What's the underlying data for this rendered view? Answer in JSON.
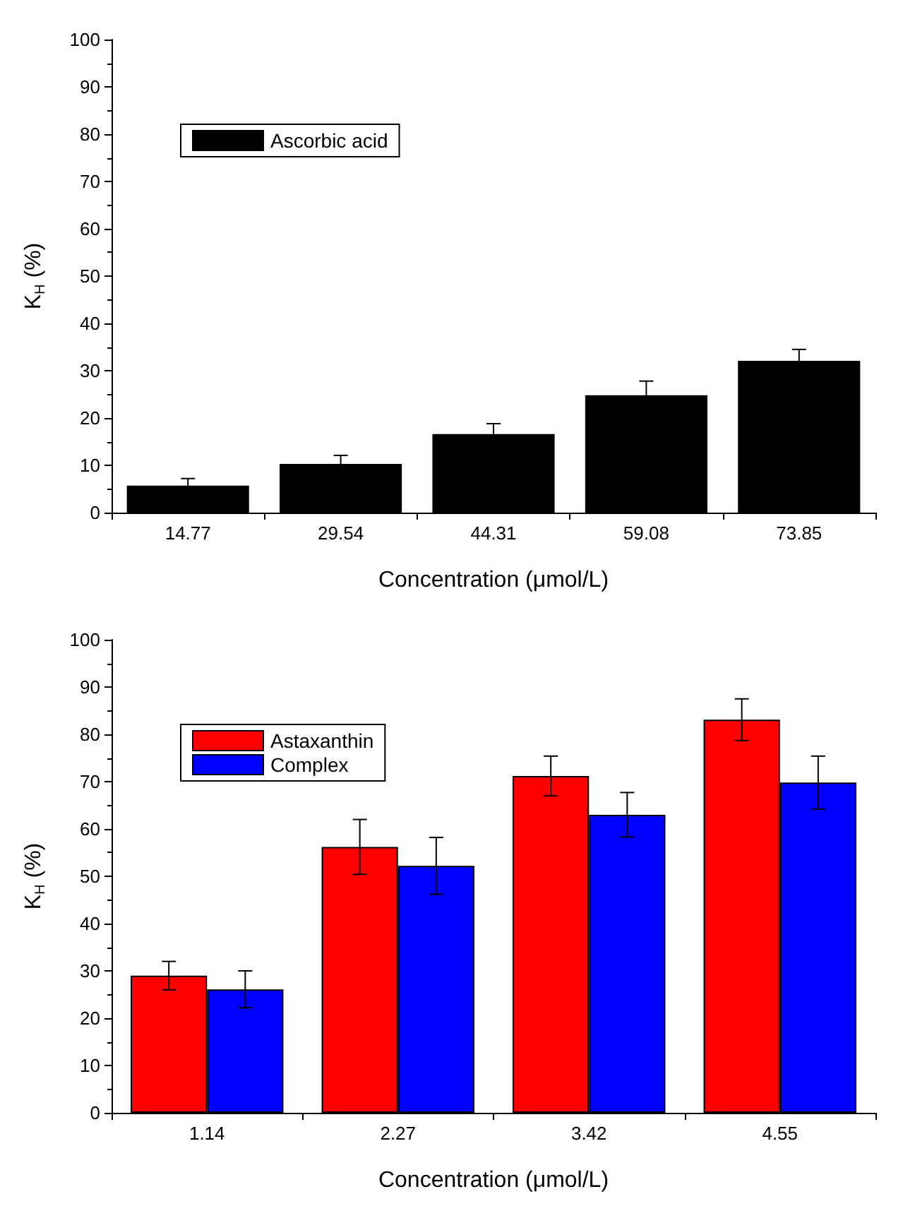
{
  "chart_data": [
    {
      "type": "bar",
      "xlabel": "Concentration (μmol/L)",
      "ylabel": "K$_{H}$ (%)",
      "categories": [
        "14.77",
        "29.54",
        "44.31",
        "59.08",
        "73.85"
      ],
      "series": [
        {
          "name": "Ascorbic acid",
          "color": "#000000",
          "values": [
            5.7,
            10.3,
            16.6,
            24.8,
            32.1
          ],
          "errors": [
            1.5,
            1.8,
            2.2,
            3.0,
            2.4
          ]
        }
      ],
      "ylim": [
        0,
        100
      ],
      "yticks": [
        0,
        10,
        20,
        30,
        40,
        50,
        60,
        70,
        80,
        90,
        100
      ],
      "grid": false,
      "legend": "top left"
    },
    {
      "type": "bar",
      "xlabel": "Concentration (μmol/L)",
      "ylabel": "K$_{H}$ (%)",
      "categories": [
        "1.14",
        "2.27",
        "3.42",
        "4.55"
      ],
      "series": [
        {
          "name": "Astaxanthin",
          "color": "#ff0000",
          "values": [
            29.0,
            56.2,
            71.2,
            83.1
          ],
          "errors": [
            3.0,
            5.8,
            4.2,
            4.4
          ]
        },
        {
          "name": "Complex",
          "color": "#0000ff",
          "values": [
            26.1,
            52.2,
            63.0,
            69.8
          ],
          "errors": [
            3.9,
            6.0,
            4.7,
            5.6
          ]
        }
      ],
      "ylim": [
        0,
        100
      ],
      "yticks": [
        0,
        10,
        20,
        30,
        40,
        50,
        60,
        70,
        80,
        90,
        100
      ],
      "grid": false,
      "legend": "top left"
    }
  ]
}
